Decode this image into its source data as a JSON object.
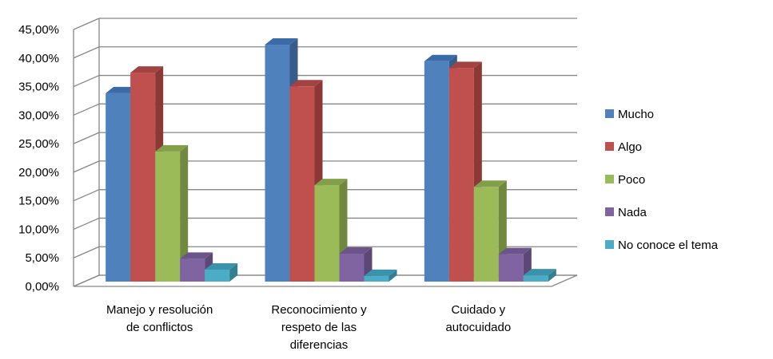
{
  "chart_data": {
    "type": "bar",
    "categories": [
      [
        "Manejo y resolución",
        "de conflictos"
      ],
      [
        "Reconocimiento y",
        "respeto de las",
        "diferencias"
      ],
      [
        "Cuidado y",
        "autocuidado"
      ]
    ],
    "series": [
      {
        "name": "Mucho",
        "values": [
          33.0,
          41.5,
          38.6
        ],
        "color": "#4F81BD",
        "side": "#385D8A",
        "top": "#3A6AA8"
      },
      {
        "name": "Algo",
        "values": [
          36.6,
          34.2,
          37.4
        ],
        "color": "#C0504D",
        "side": "#8C3836",
        "top": "#A24341"
      },
      {
        "name": "Poco",
        "values": [
          22.8,
          16.9,
          16.6
        ],
        "color": "#9BBB59",
        "side": "#71893F",
        "top": "#839F49"
      },
      {
        "name": "Nada",
        "values": [
          4.0,
          4.9,
          4.8
        ],
        "color": "#8064A2",
        "side": "#5C4776",
        "top": "#6B5489"
      },
      {
        "name": "No conoce el tema",
        "values": [
          2.1,
          1.0,
          1.1
        ],
        "color": "#4BACC6",
        "side": "#347E92",
        "top": "#3A93AB"
      }
    ],
    "y_ticks": [
      "0,00%",
      "5,00%",
      "10,00%",
      "15,00%",
      "20,00%",
      "25,00%",
      "30,00%",
      "35,00%",
      "40,00%",
      "45,00%"
    ],
    "ylim": [
      0,
      45
    ],
    "grid": true,
    "legend_position": "right"
  }
}
